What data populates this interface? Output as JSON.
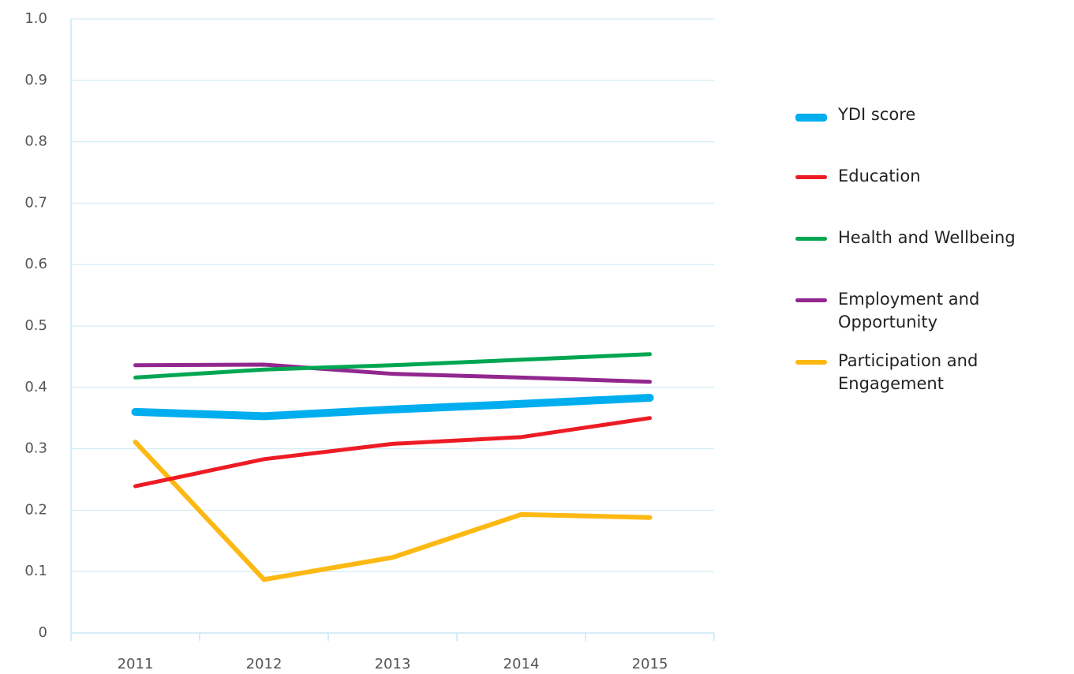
{
  "chart_data": {
    "type": "line",
    "categories": [
      "2011",
      "2012",
      "2013",
      "2014",
      "2015"
    ],
    "series": [
      {
        "name": "YDI score",
        "color": "#00aeef",
        "line_width": 10,
        "values": [
          0.36,
          0.353,
          0.364,
          0.373,
          0.383
        ]
      },
      {
        "name": "Education",
        "color": "#ed1c24",
        "line_width": 5,
        "values": [
          0.239,
          0.283,
          0.308,
          0.319,
          0.35
        ]
      },
      {
        "name": "Health and Wellbeing",
        "color": "#00a651",
        "line_width": 5,
        "values": [
          0.416,
          0.429,
          0.436,
          0.445,
          0.454
        ]
      },
      {
        "name": "Employment and Opportunity",
        "color": "#92278f",
        "line_width": 5,
        "values": [
          0.436,
          0.437,
          0.422,
          0.416,
          0.409
        ]
      },
      {
        "name": "Participation and Engagement",
        "color": "#fdb913",
        "line_width": 6,
        "values": [
          0.311,
          0.087,
          0.123,
          0.193,
          0.188
        ]
      }
    ],
    "ylim": [
      0,
      1
    ],
    "yticks": [
      0,
      0.1,
      0.2,
      0.3,
      0.4,
      0.5,
      0.6,
      0.7,
      0.8,
      0.9,
      {
        "value": 1,
        "label": "1.0"
      }
    ],
    "grid": true,
    "legend": "right"
  }
}
